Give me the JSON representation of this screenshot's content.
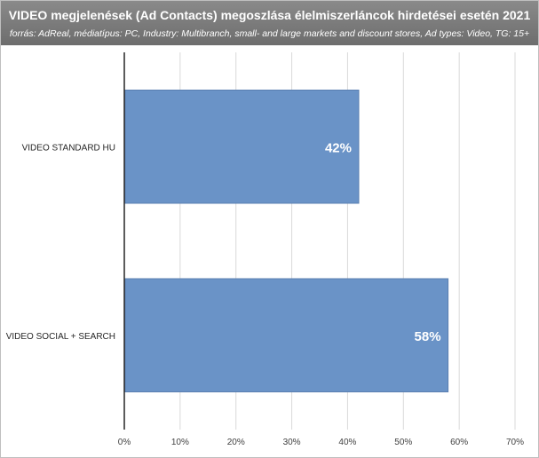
{
  "chart_data": {
    "type": "bar",
    "orientation": "horizontal",
    "title": "VIDEO megjelenések (Ad Contacts) megoszlása  élelmiszerláncok hirdetései esetén 2021",
    "subtitle": "forrás: AdReal, médiatípus: PC, Industry: Multibranch, small- and large markets and discount stores, Ad types: Video, TG: 15+",
    "categories": [
      "VIDEO STANDARD HU",
      "VIDEO SOCIAL + SEARCH"
    ],
    "values": [
      42,
      58
    ],
    "data_labels": [
      "42%",
      "58%"
    ],
    "xlim": [
      0,
      70
    ],
    "x_ticks": [
      0,
      10,
      20,
      30,
      40,
      50,
      60,
      70
    ],
    "x_tick_labels": [
      "0%",
      "10%",
      "20%",
      "30%",
      "40%",
      "50%",
      "60%",
      "70%"
    ],
    "grid": "vertical",
    "bar_color": "#6a93c7",
    "bar_border_color": "#5a7fb0",
    "grid_color": "#d9d9d9",
    "title_background": "#7f7f7f"
  }
}
